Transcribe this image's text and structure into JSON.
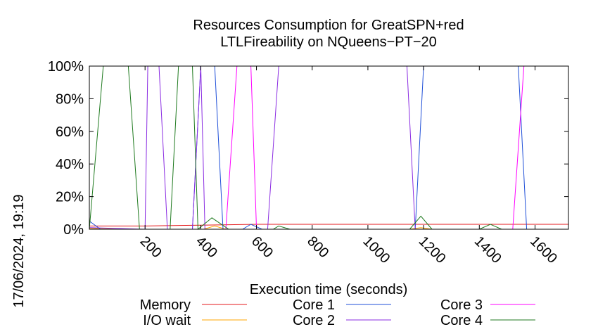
{
  "chart_data": {
    "type": "line",
    "title": [
      "Resources Consumption for GreatSPN+red",
      "LTLFireability on NQueens−PT−20"
    ],
    "xlabel": "Execution time (seconds)",
    "ylabel": "",
    "xlim": [
      0,
      1720
    ],
    "ylim": [
      0,
      100
    ],
    "xticks": [
      200,
      400,
      600,
      800,
      1000,
      1200,
      1400,
      1600
    ],
    "yticks": [
      0,
      20,
      40,
      60,
      80,
      100
    ],
    "ytick_labels": [
      "0%",
      "20%",
      "40%",
      "60%",
      "80%",
      "100%"
    ],
    "grid": false,
    "timestamp": "17/06/2024, 19:19",
    "legend_position": "bottom",
    "series": [
      {
        "name": "Memory",
        "color": "#e41a1c",
        "points": [
          [
            0,
            2
          ],
          [
            200,
            2
          ],
          [
            400,
            2.5
          ],
          [
            600,
            3
          ],
          [
            800,
            3
          ],
          [
            1000,
            3
          ],
          [
            1200,
            3
          ],
          [
            1400,
            3
          ],
          [
            1600,
            3
          ],
          [
            1720,
            3
          ]
        ]
      },
      {
        "name": "I/O wait",
        "color": "#ffa500",
        "points": [
          [
            0,
            0.5
          ],
          [
            120,
            0
          ],
          [
            410,
            0
          ],
          [
            450,
            2
          ],
          [
            490,
            0
          ],
          [
            1150,
            0
          ],
          [
            1190,
            1
          ],
          [
            1230,
            0
          ],
          [
            1720,
            0
          ]
        ]
      },
      {
        "name": "Core 1",
        "color": "#1f4fd8",
        "points": [
          [
            0,
            5
          ],
          [
            40,
            0
          ],
          [
            370,
            0
          ],
          [
            400,
            100
          ],
          [
            450,
            100
          ],
          [
            480,
            0
          ],
          [
            550,
            0
          ],
          [
            580,
            3
          ],
          [
            620,
            0
          ],
          [
            1170,
            0
          ],
          [
            1200,
            100
          ],
          [
            1540,
            100
          ],
          [
            1570,
            0
          ],
          [
            1720,
            0
          ]
        ]
      },
      {
        "name": "Core 2",
        "color": "#8a2be2",
        "points": [
          [
            0,
            1
          ],
          [
            200,
            0
          ],
          [
            210,
            100
          ],
          [
            250,
            100
          ],
          [
            280,
            0
          ],
          [
            370,
            0
          ],
          [
            400,
            100
          ],
          [
            415,
            0
          ],
          [
            640,
            0
          ],
          [
            680,
            100
          ],
          [
            1140,
            100
          ],
          [
            1170,
            0
          ],
          [
            1720,
            0
          ]
        ]
      },
      {
        "name": "Core 3",
        "color": "#ff00ff",
        "points": [
          [
            0,
            0
          ],
          [
            490,
            0
          ],
          [
            530,
            100
          ],
          [
            580,
            100
          ],
          [
            600,
            0
          ],
          [
            1520,
            0
          ],
          [
            1560,
            100
          ],
          [
            1720,
            100
          ]
        ]
      },
      {
        "name": "Core 4",
        "color": "#1f7a1f",
        "points": [
          [
            0,
            0
          ],
          [
            50,
            100
          ],
          [
            140,
            100
          ],
          [
            180,
            0
          ],
          [
            290,
            0
          ],
          [
            320,
            100
          ],
          [
            370,
            100
          ],
          [
            390,
            0
          ],
          [
            440,
            7
          ],
          [
            500,
            0
          ],
          [
            660,
            0
          ],
          [
            680,
            2
          ],
          [
            720,
            0
          ],
          [
            1150,
            0
          ],
          [
            1190,
            8
          ],
          [
            1230,
            0
          ],
          [
            1400,
            0
          ],
          [
            1440,
            3
          ],
          [
            1480,
            0
          ],
          [
            1720,
            0
          ]
        ]
      }
    ]
  }
}
